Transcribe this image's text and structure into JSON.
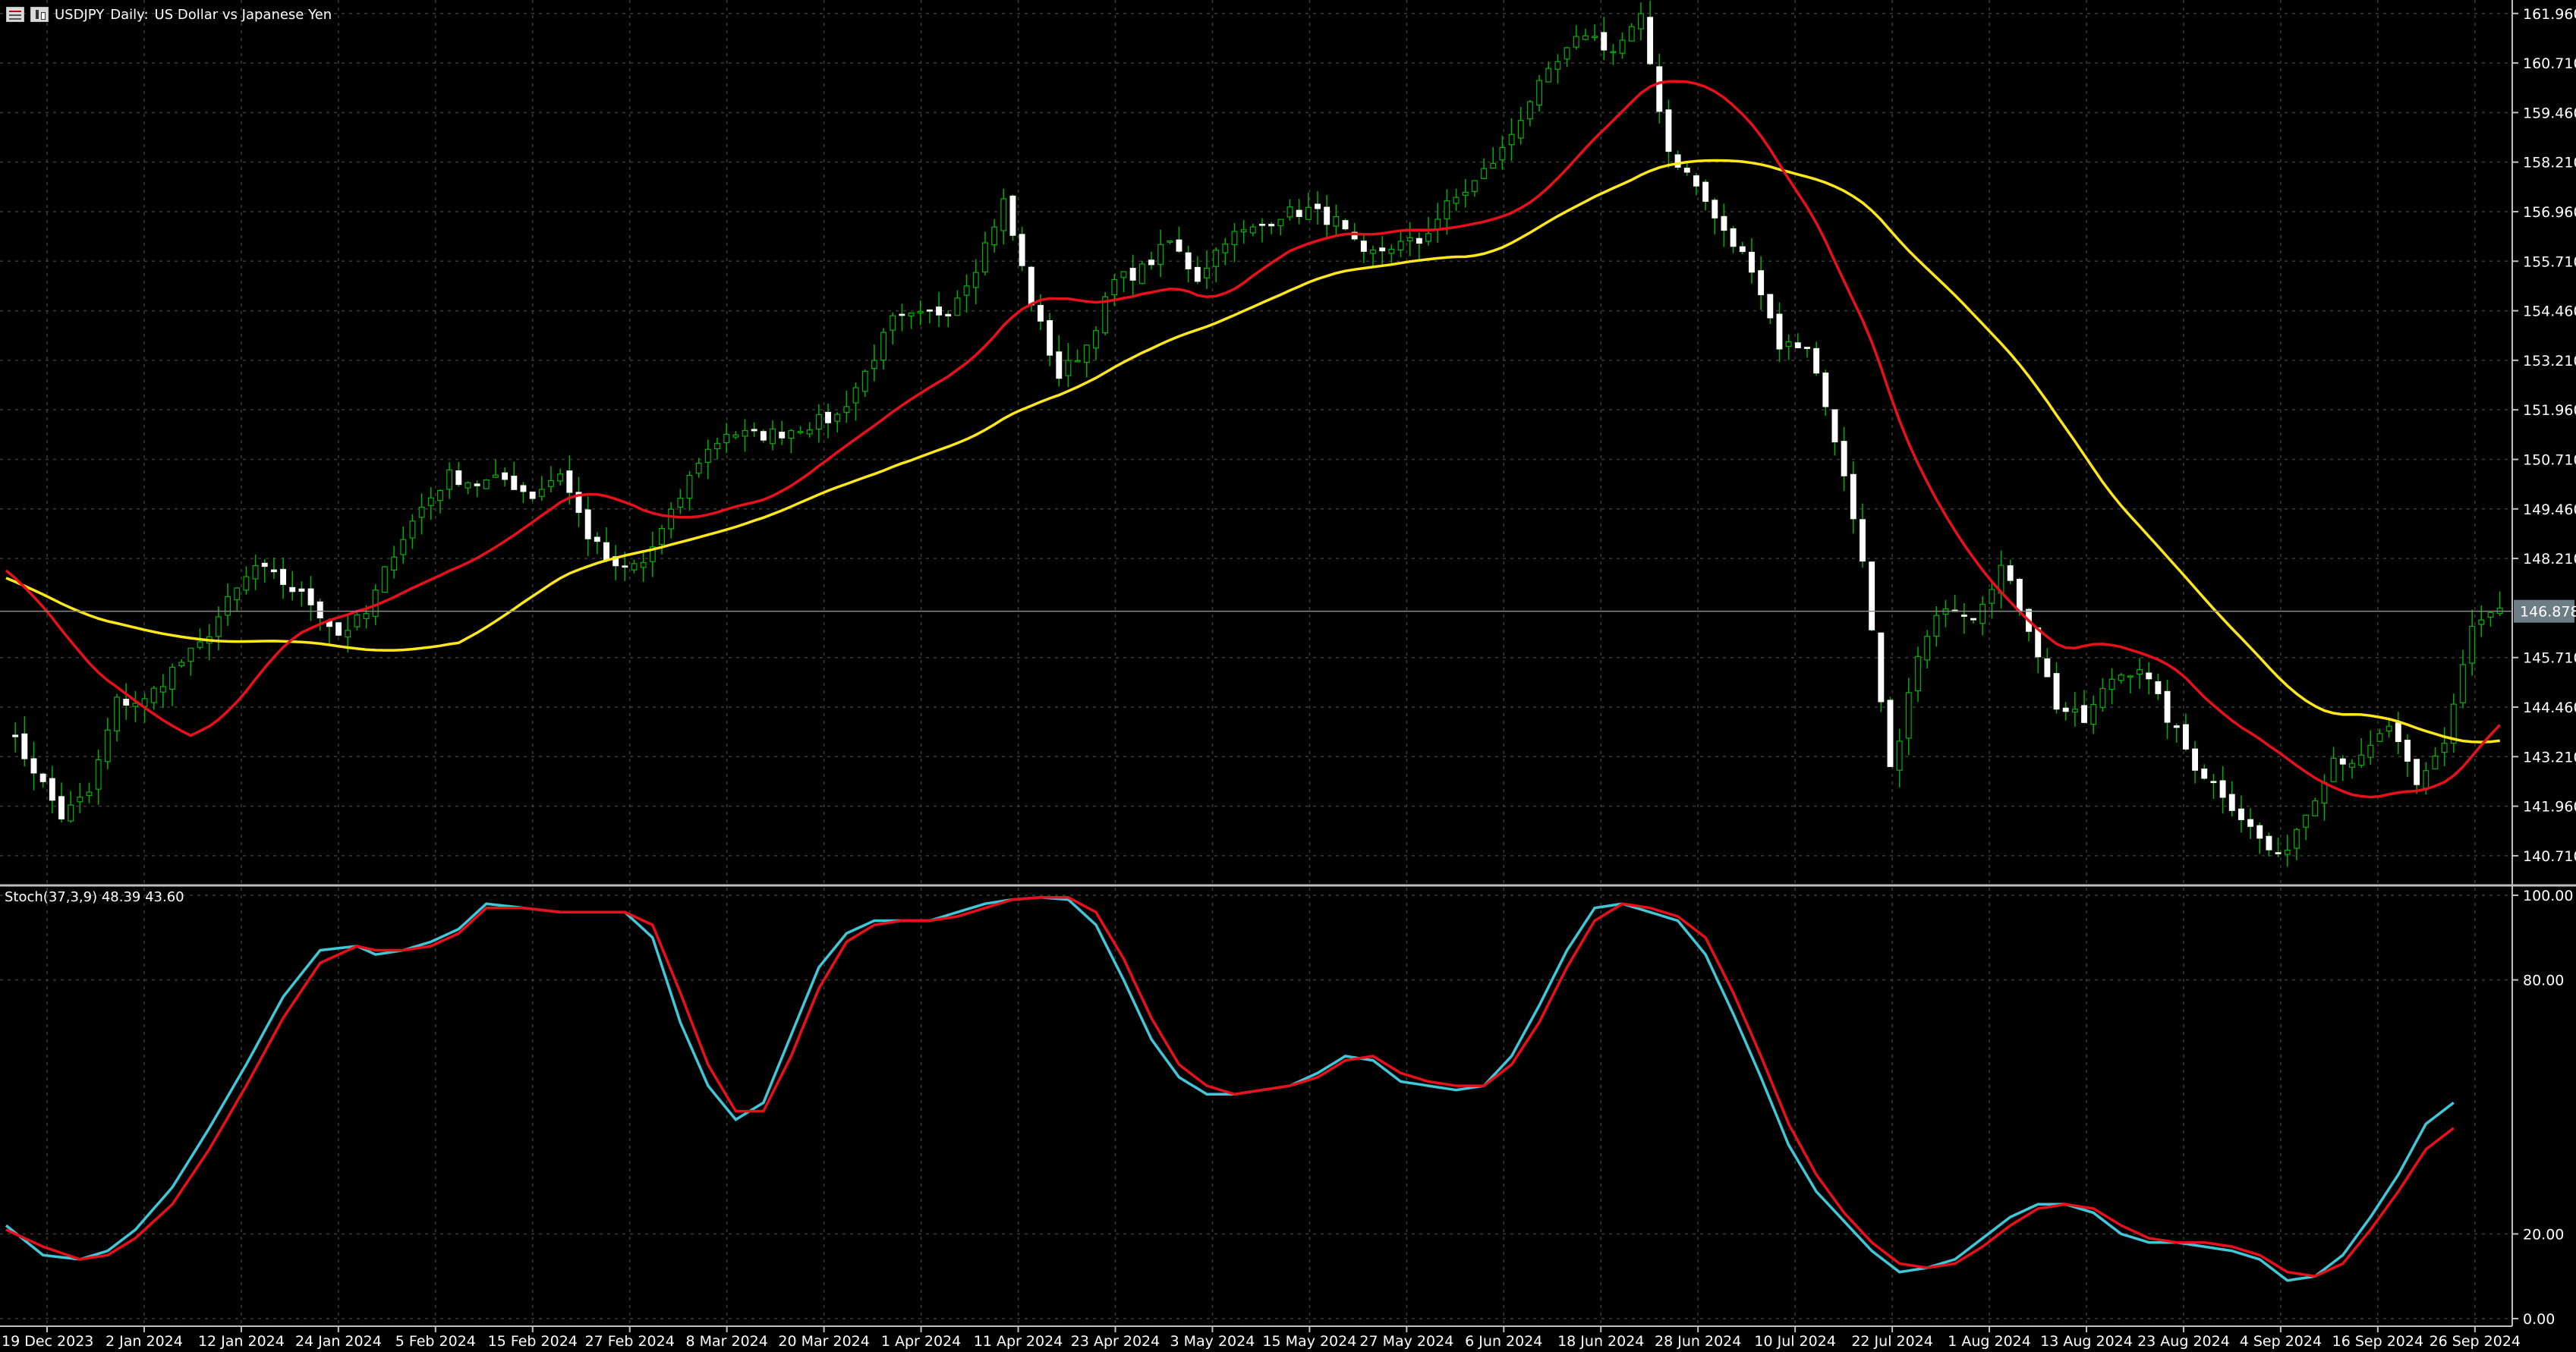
{
  "header": {
    "symbol": "USDJPY",
    "timeframe": "Daily:",
    "description": "US Dollar vs Japanese Yen",
    "icons": [
      "table-icon",
      "candlestick-icon"
    ]
  },
  "stochastic": {
    "label": "Stoch(37,3,9) 48.39 43.60",
    "main_color": "#40c8d8",
    "signal_color": "#e8101a"
  },
  "price_axis": {
    "ticks": [
      "161.960",
      "160.710",
      "159.460",
      "158.210",
      "156.960",
      "155.710",
      "154.460",
      "153.210",
      "151.960",
      "150.710",
      "149.460",
      "148.210",
      "145.710",
      "144.460",
      "143.210",
      "141.960",
      "140.710"
    ],
    "current_price": "146.878"
  },
  "stoch_axis": {
    "ticks": [
      "100.00",
      "80.00",
      "20.00",
      "0.00"
    ]
  },
  "time_axis": {
    "labels": [
      "19 Dec 2023",
      "2 Jan 2024",
      "12 Jan 2024",
      "24 Jan 2024",
      "5 Feb 2024",
      "15 Feb 2024",
      "27 Feb 2024",
      "8 Mar 2024",
      "20 Mar 2024",
      "1 Apr 2024",
      "11 Apr 2024",
      "23 Apr 2024",
      "3 May 2024",
      "15 May 2024",
      "27 May 2024",
      "6 Jun 2024",
      "18 Jun 2024",
      "28 Jun 2024",
      "10 Jul 2024",
      "22 Jul 2024",
      "1 Aug 2024",
      "13 Aug 2024",
      "23 Aug 2024",
      "4 Sep 2024",
      "16 Sep 2024",
      "26 Sep 2024"
    ]
  },
  "colors": {
    "background": "#000000",
    "grid": "#3a3a3a",
    "bull_candle": "#000000",
    "bull_outline": "#00b000",
    "bear_candle": "#ffffff",
    "wick": "#00b000",
    "ma_fast": "#e8101a",
    "ma_slow": "#ffe81a",
    "axis_text": "#ffffff"
  },
  "chart_data": {
    "type": "candlestick",
    "ylim": [
      140.0,
      162.3
    ],
    "close_series": [
      [
        0,
        143.9
      ],
      [
        3,
        142.9
      ],
      [
        6,
        141.7
      ],
      [
        9,
        142.3
      ],
      [
        12,
        144.6
      ],
      [
        15,
        144.6
      ],
      [
        18,
        145.4
      ],
      [
        21,
        146.0
      ],
      [
        24,
        147.1
      ],
      [
        27,
        148.0
      ],
      [
        30,
        147.6
      ],
      [
        33,
        147.1
      ],
      [
        36,
        146.3
      ],
      [
        39,
        146.8
      ],
      [
        42,
        148.4
      ],
      [
        45,
        149.5
      ],
      [
        48,
        150.3
      ],
      [
        51,
        150.1
      ],
      [
        54,
        150.2
      ],
      [
        57,
        149.8
      ],
      [
        60,
        150.4
      ],
      [
        63,
        148.8
      ],
      [
        66,
        147.9
      ],
      [
        69,
        148.1
      ],
      [
        72,
        149.3
      ],
      [
        75,
        150.7
      ],
      [
        78,
        151.4
      ],
      [
        81,
        151.3
      ],
      [
        84,
        151.4
      ],
      [
        87,
        151.6
      ],
      [
        90,
        151.8
      ],
      [
        93,
        152.9
      ],
      [
        96,
        154.2
      ],
      [
        99,
        154.3
      ],
      [
        102,
        154.5
      ],
      [
        105,
        155.6
      ],
      [
        108,
        157.2
      ],
      [
        111,
        154.7
      ],
      [
        114,
        152.8
      ],
      [
        117,
        153.6
      ],
      [
        120,
        155.2
      ],
      [
        123,
        155.5
      ],
      [
        126,
        156.2
      ],
      [
        129,
        155.3
      ],
      [
        132,
        156.3
      ],
      [
        135,
        156.5
      ],
      [
        138,
        156.9
      ],
      [
        141,
        157.0
      ],
      [
        144,
        156.7
      ],
      [
        147,
        155.8
      ],
      [
        150,
        156.1
      ],
      [
        153,
        156.2
      ],
      [
        156,
        157.1
      ],
      [
        159,
        157.7
      ],
      [
        162,
        158.5
      ],
      [
        165,
        159.8
      ],
      [
        168,
        160.7
      ],
      [
        171,
        161.5
      ],
      [
        174,
        161.0
      ],
      [
        177,
        161.8
      ],
      [
        180,
        158.5
      ],
      [
        183,
        157.6
      ],
      [
        186,
        156.4
      ],
      [
        189,
        155.6
      ],
      [
        192,
        153.6
      ],
      [
        195,
        153.6
      ],
      [
        198,
        151.3
      ],
      [
        201,
        148.0
      ],
      [
        204,
        142.8
      ],
      [
        207,
        145.7
      ],
      [
        210,
        147.1
      ],
      [
        213,
        146.8
      ],
      [
        216,
        148.0
      ],
      [
        219,
        146.5
      ],
      [
        222,
        144.5
      ],
      [
        225,
        144.1
      ],
      [
        228,
        145.2
      ],
      [
        231,
        145.5
      ],
      [
        234,
        144.2
      ],
      [
        237,
        143.0
      ],
      [
        240,
        142.3
      ],
      [
        243,
        141.4
      ],
      [
        246,
        140.6
      ],
      [
        249,
        141.8
      ],
      [
        252,
        143.2
      ],
      [
        255,
        143.1
      ],
      [
        258,
        144.0
      ],
      [
        261,
        142.4
      ],
      [
        264,
        143.6
      ],
      [
        267,
        146.5
      ],
      [
        270,
        146.9
      ]
    ],
    "ma_fast_label": "",
    "ma_slow_label": "",
    "stoch_main": [
      [
        0,
        22
      ],
      [
        4,
        15
      ],
      [
        8,
        14
      ],
      [
        11,
        16
      ],
      [
        14,
        21
      ],
      [
        18,
        31
      ],
      [
        22,
        45
      ],
      [
        26,
        60
      ],
      [
        30,
        76
      ],
      [
        34,
        87
      ],
      [
        38,
        88
      ],
      [
        40,
        86
      ],
      [
        43,
        87
      ],
      [
        46,
        89
      ],
      [
        49,
        92
      ],
      [
        52,
        98
      ],
      [
        56,
        97
      ],
      [
        60,
        96
      ],
      [
        64,
        96
      ],
      [
        67,
        96
      ],
      [
        70,
        90
      ],
      [
        73,
        70
      ],
      [
        76,
        55
      ],
      [
        79,
        47
      ],
      [
        82,
        51
      ],
      [
        85,
        67
      ],
      [
        88,
        83
      ],
      [
        91,
        91
      ],
      [
        94,
        94
      ],
      [
        97,
        94
      ],
      [
        100,
        94
      ],
      [
        103,
        96
      ],
      [
        106,
        98
      ],
      [
        109,
        99
      ],
      [
        112,
        99.5
      ],
      [
        115,
        99
      ],
      [
        118,
        93
      ],
      [
        121,
        80
      ],
      [
        124,
        66
      ],
      [
        127,
        57
      ],
      [
        130,
        53
      ],
      [
        133,
        53
      ],
      [
        136,
        54
      ],
      [
        139,
        55
      ],
      [
        142,
        58
      ],
      [
        145,
        62
      ],
      [
        148,
        61
      ],
      [
        151,
        56
      ],
      [
        154,
        55
      ],
      [
        157,
        54
      ],
      [
        160,
        55
      ],
      [
        163,
        62
      ],
      [
        166,
        74
      ],
      [
        169,
        87
      ],
      [
        172,
        97
      ],
      [
        175,
        98
      ],
      [
        178,
        96
      ],
      [
        181,
        94
      ],
      [
        184,
        86
      ],
      [
        187,
        72
      ],
      [
        190,
        57
      ],
      [
        193,
        41
      ],
      [
        196,
        30
      ],
      [
        199,
        23
      ],
      [
        202,
        16
      ],
      [
        205,
        11
      ],
      [
        208,
        12
      ],
      [
        211,
        14
      ],
      [
        214,
        19
      ],
      [
        217,
        24
      ],
      [
        220,
        27
      ],
      [
        223,
        27
      ],
      [
        226,
        25
      ],
      [
        229,
        20
      ],
      [
        232,
        18
      ],
      [
        235,
        18
      ],
      [
        238,
        17
      ],
      [
        241,
        16
      ],
      [
        244,
        14
      ],
      [
        247,
        9
      ],
      [
        250,
        10
      ],
      [
        253,
        15
      ],
      [
        256,
        24
      ],
      [
        259,
        34
      ],
      [
        262,
        46
      ],
      [
        265,
        51
      ]
    ],
    "stoch_signal": [
      [
        0,
        21
      ],
      [
        4,
        17
      ],
      [
        8,
        14
      ],
      [
        11,
        15
      ],
      [
        14,
        19
      ],
      [
        18,
        27
      ],
      [
        22,
        40
      ],
      [
        26,
        55
      ],
      [
        30,
        71
      ],
      [
        34,
        84
      ],
      [
        38,
        88
      ],
      [
        40,
        87
      ],
      [
        43,
        87
      ],
      [
        46,
        88
      ],
      [
        49,
        91
      ],
      [
        52,
        97
      ],
      [
        56,
        97
      ],
      [
        60,
        96
      ],
      [
        64,
        96
      ],
      [
        67,
        96
      ],
      [
        70,
        93
      ],
      [
        73,
        77
      ],
      [
        76,
        60
      ],
      [
        79,
        49
      ],
      [
        82,
        49
      ],
      [
        85,
        62
      ],
      [
        88,
        78
      ],
      [
        91,
        89
      ],
      [
        94,
        93
      ],
      [
        97,
        94
      ],
      [
        100,
        94
      ],
      [
        103,
        95
      ],
      [
        106,
        97
      ],
      [
        109,
        99
      ],
      [
        112,
        99.5
      ],
      [
        115,
        99.5
      ],
      [
        118,
        96
      ],
      [
        121,
        85
      ],
      [
        124,
        71
      ],
      [
        127,
        60
      ],
      [
        130,
        55
      ],
      [
        133,
        53
      ],
      [
        136,
        54
      ],
      [
        139,
        55
      ],
      [
        142,
        57
      ],
      [
        145,
        61
      ],
      [
        148,
        62
      ],
      [
        151,
        58
      ],
      [
        154,
        56
      ],
      [
        157,
        55
      ],
      [
        160,
        55
      ],
      [
        163,
        60
      ],
      [
        166,
        70
      ],
      [
        169,
        83
      ],
      [
        172,
        94
      ],
      [
        175,
        98
      ],
      [
        178,
        97
      ],
      [
        181,
        95
      ],
      [
        184,
        90
      ],
      [
        187,
        77
      ],
      [
        190,
        62
      ],
      [
        193,
        46
      ],
      [
        196,
        34
      ],
      [
        199,
        25
      ],
      [
        202,
        18
      ],
      [
        205,
        13
      ],
      [
        208,
        12
      ],
      [
        211,
        13
      ],
      [
        214,
        17
      ],
      [
        217,
        22
      ],
      [
        220,
        26
      ],
      [
        223,
        27
      ],
      [
        226,
        26
      ],
      [
        229,
        22
      ],
      [
        232,
        19
      ],
      [
        235,
        18
      ],
      [
        238,
        18
      ],
      [
        241,
        17
      ],
      [
        244,
        15
      ],
      [
        247,
        11
      ],
      [
        250,
        10
      ],
      [
        253,
        13
      ],
      [
        256,
        21
      ],
      [
        259,
        30
      ],
      [
        262,
        40
      ],
      [
        265,
        45
      ]
    ],
    "stoch_ylim": [
      0,
      100
    ]
  }
}
